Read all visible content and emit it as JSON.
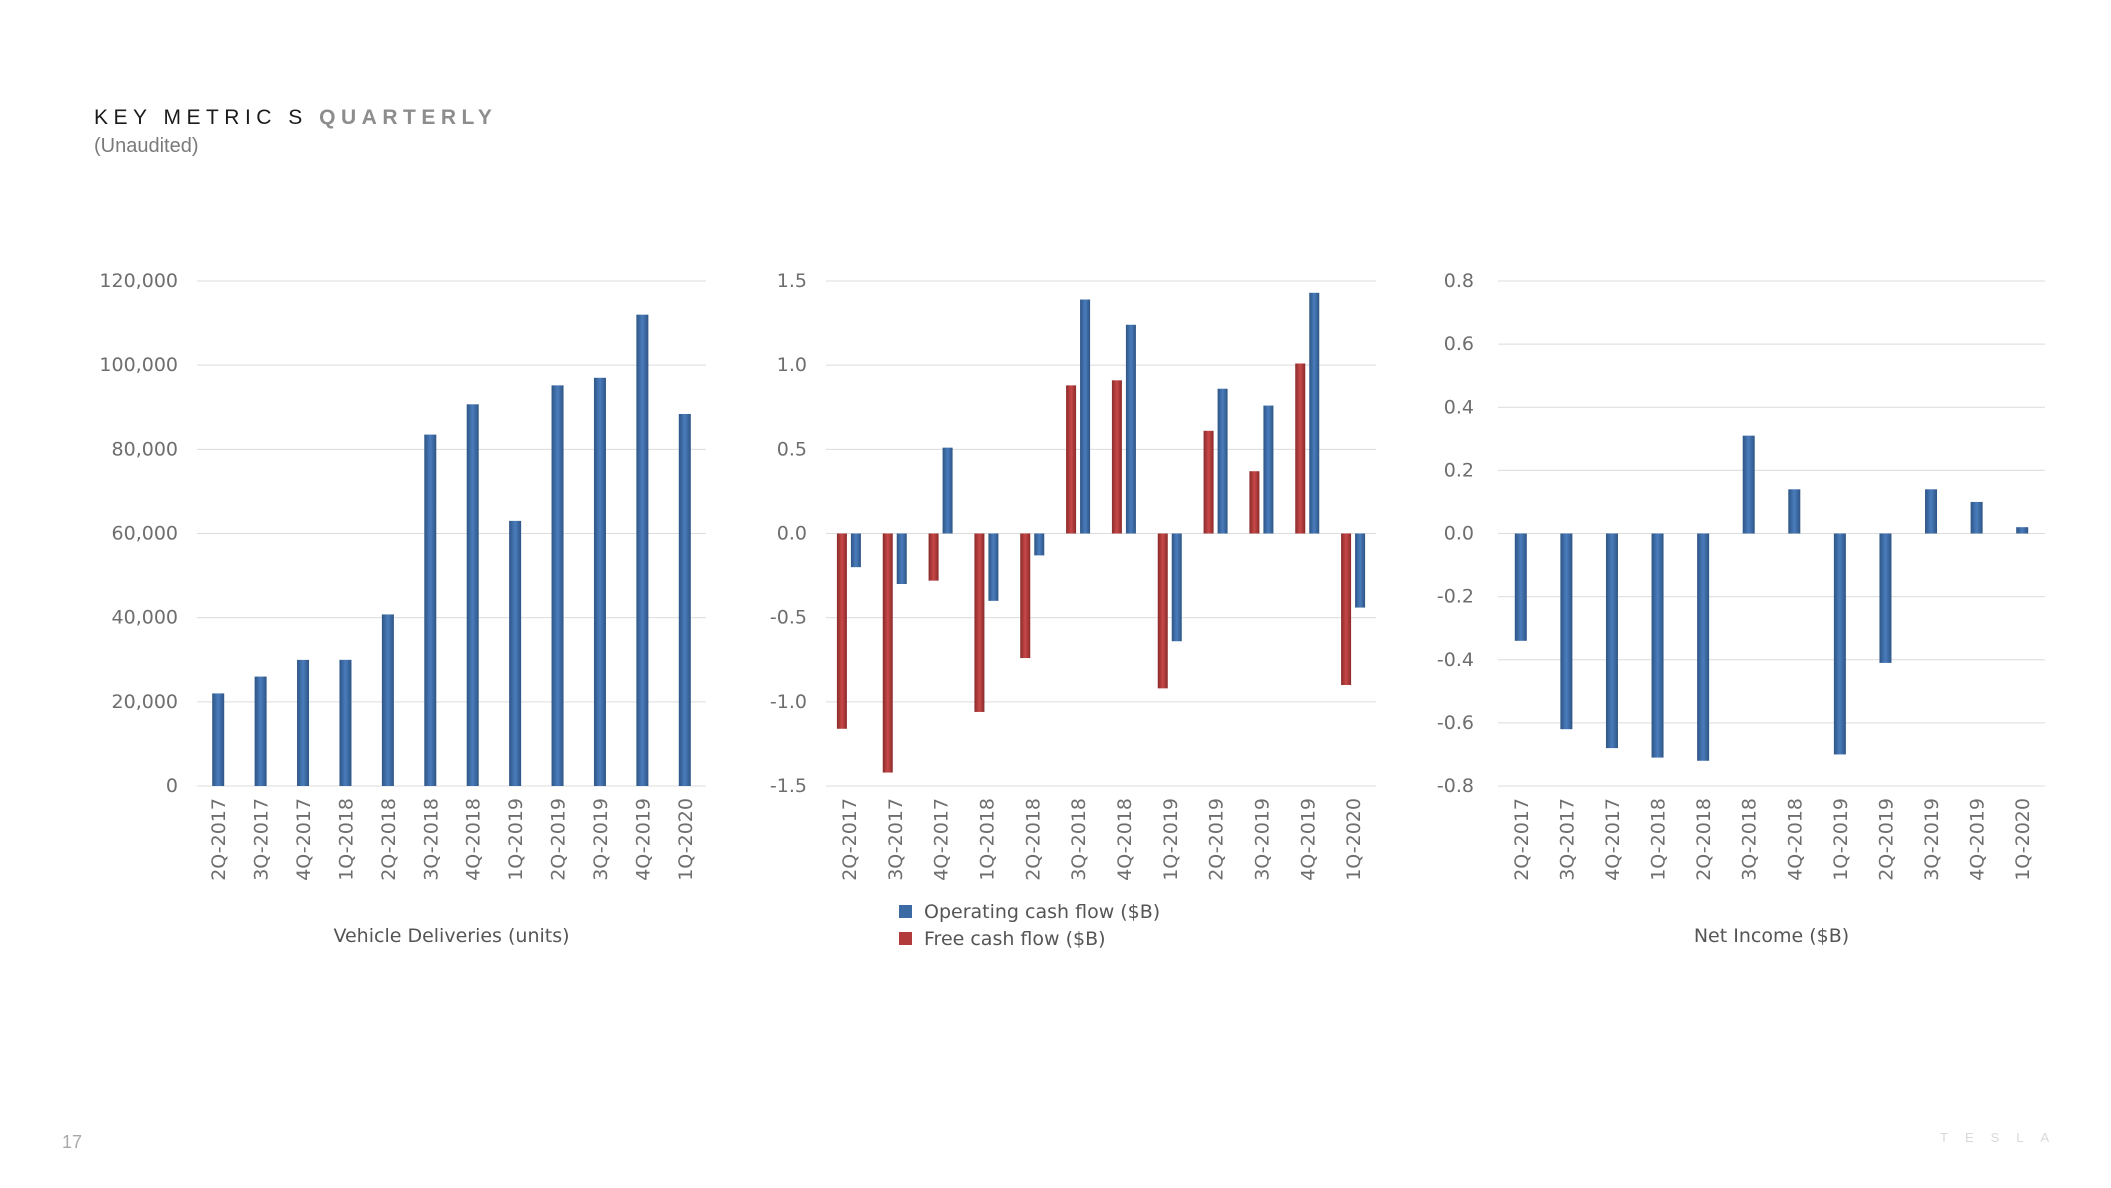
{
  "header": {
    "title_bold": "KEY METRIC S",
    "title_light": "QUARTERLY",
    "subtitle": "(Unaudited)"
  },
  "footer": {
    "page_number": "17",
    "brand": "TESLA"
  },
  "colors": {
    "blue": "#3c6aa4",
    "blue_dark": "#2e5585",
    "red": "#b33a3a",
    "red_dark": "#8a2a2a",
    "grid": "#dcdcdc",
    "axis_text": "#6e6e6e"
  },
  "chart_data": [
    {
      "type": "bar",
      "categories": [
        "2Q-2017",
        "3Q-2017",
        "4Q-2017",
        "1Q-2018",
        "2Q-2018",
        "3Q-2018",
        "4Q-2018",
        "1Q-2019",
        "2Q-2019",
        "3Q-2019",
        "4Q-2019",
        "1Q-2020"
      ],
      "series": [
        {
          "name": "Vehicle Deliveries (units)",
          "color": "#3c6aa4",
          "values": [
            22000,
            26000,
            29967,
            29980,
            40768,
            83500,
            90700,
            63000,
            95200,
            97000,
            112000,
            88400
          ]
        }
      ],
      "yticks": [
        0,
        20000,
        40000,
        60000,
        80000,
        100000,
        120000
      ],
      "ytick_labels": [
        "0",
        "20,000",
        "40,000",
        "60,000",
        "80,000",
        "100,000",
        "120,000"
      ],
      "ylim": [
        0,
        120000
      ],
      "xlabel": "Vehicle Deliveries (units)",
      "grid": true
    },
    {
      "type": "bar",
      "categories": [
        "2Q-2017",
        "3Q-2017",
        "4Q-2017",
        "1Q-2018",
        "2Q-2018",
        "3Q-2018",
        "4Q-2018",
        "1Q-2019",
        "2Q-2019",
        "3Q-2019",
        "4Q-2019",
        "1Q-2020"
      ],
      "series": [
        {
          "name": "Free cash flow ($B)",
          "color": "#b33a3a",
          "values": [
            -1.16,
            -1.42,
            -0.28,
            -1.06,
            -0.74,
            0.88,
            0.91,
            -0.92,
            0.61,
            0.37,
            1.01,
            -0.9
          ]
        },
        {
          "name": "Operating cash flow ($B)",
          "color": "#3c6aa4",
          "values": [
            -0.2,
            -0.3,
            0.51,
            -0.4,
            -0.13,
            1.39,
            1.24,
            -0.64,
            0.86,
            0.76,
            1.43,
            -0.44
          ]
        }
      ],
      "yticks": [
        -1.5,
        -1.0,
        -0.5,
        0.0,
        0.5,
        1.0,
        1.5
      ],
      "ytick_labels": [
        "-1.5",
        "-1.0",
        "-0.5",
        "0.0",
        "0.5",
        "1.0",
        "1.5"
      ],
      "ylim": [
        -1.5,
        1.5
      ],
      "legend": [
        {
          "label": "Operating cash flow ($B)",
          "color": "#3c6aa4"
        },
        {
          "label": "Free cash flow ($B)",
          "color": "#b33a3a"
        }
      ],
      "legend_position": "bottom-left",
      "grid": true
    },
    {
      "type": "bar",
      "categories": [
        "2Q-2017",
        "3Q-2017",
        "4Q-2017",
        "1Q-2018",
        "2Q-2018",
        "3Q-2018",
        "4Q-2018",
        "1Q-2019",
        "2Q-2019",
        "3Q-2019",
        "4Q-2019",
        "1Q-2020"
      ],
      "series": [
        {
          "name": "Net Income ($B)",
          "color": "#3c6aa4",
          "values": [
            -0.34,
            -0.62,
            -0.68,
            -0.71,
            -0.72,
            0.31,
            0.14,
            -0.7,
            -0.41,
            0.14,
            0.1,
            0.02
          ]
        }
      ],
      "yticks": [
        -0.8,
        -0.6,
        -0.4,
        -0.2,
        0.0,
        0.2,
        0.4,
        0.6,
        0.8
      ],
      "ytick_labels": [
        "-0.8",
        "-0.6",
        "-0.4",
        "-0.2",
        "0.0",
        "0.2",
        "0.4",
        "0.6",
        "0.8"
      ],
      "ylim": [
        -0.8,
        0.8
      ],
      "xlabel": "Net Income ($B)",
      "grid": true
    }
  ]
}
